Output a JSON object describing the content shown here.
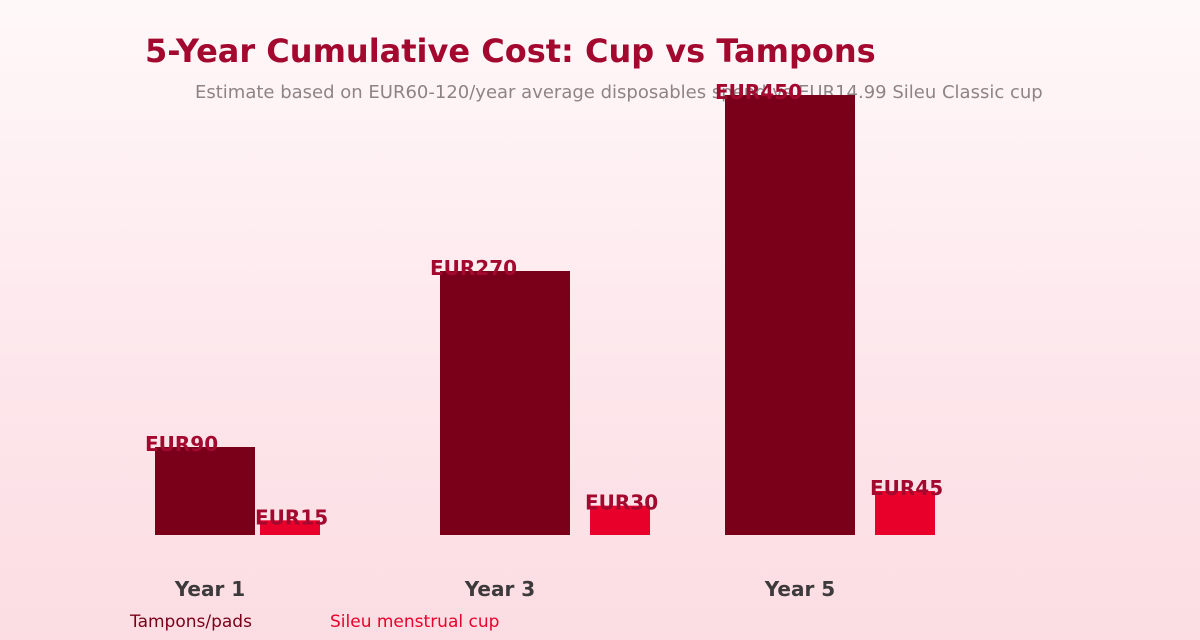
{
  "title": "5-Year Cumulative Cost: Cup vs Tampons",
  "subtitle": "Estimate based on EUR60-120/year average disposables spend vs EUR14.99 Sileu Classic cup",
  "colors": {
    "tampons": "#7a0019",
    "cup": "#e8002a",
    "title": "#a3082f"
  },
  "chart_data": {
    "type": "bar",
    "title": "5-Year Cumulative Cost: Cup vs Tampons",
    "subtitle": "Estimate based on EUR60-120/year average disposables spend vs EUR14.99 Sileu Classic cup",
    "categories": [
      "Year 1",
      "Year 3",
      "Year 5"
    ],
    "series": [
      {
        "name": "Tampons/pads",
        "values": [
          90,
          270,
          450
        ],
        "labels": [
          "EUR90",
          "EUR270",
          "EUR450"
        ]
      },
      {
        "name": "Sileu menstrual cup",
        "values": [
          15,
          30,
          45
        ],
        "labels": [
          "EUR15",
          "EUR30",
          "EUR45"
        ]
      }
    ],
    "xlabel": "",
    "ylabel": "",
    "ylim": [
      0,
      450
    ],
    "grid": false,
    "legend": "bottom-left"
  },
  "legend": {
    "item1": "Tampons/pads",
    "item2": "Sileu menstrual cup"
  }
}
